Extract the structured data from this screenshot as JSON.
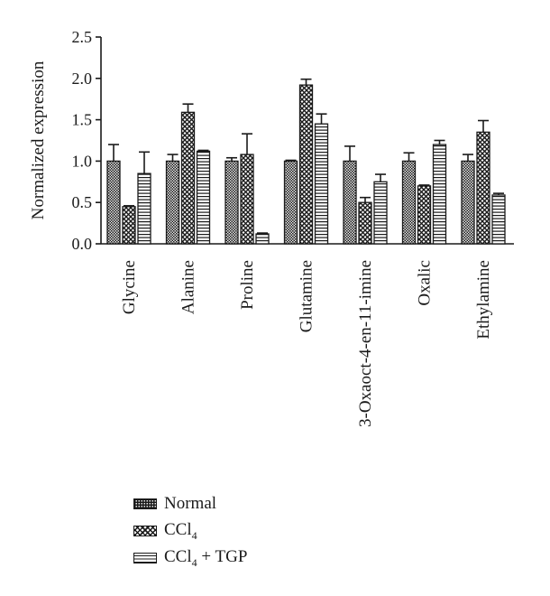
{
  "chart_data": {
    "type": "bar",
    "ylabel": "Normalized expression",
    "ylim": [
      0,
      2.5
    ],
    "yticks": [
      "0.0",
      "0.5",
      "1.0",
      "1.5",
      "2.0",
      "2.5"
    ],
    "categories": [
      "Glycine",
      "Alanine",
      "Proline",
      "Glutamine",
      "3-Oxaoct-4-en-11-imine",
      "Oxalic",
      "Ethylamine"
    ],
    "legend_position": "bottom-left",
    "series": [
      {
        "name": "Normal",
        "pattern": "fine-check",
        "values": [
          1.0,
          1.0,
          1.0,
          1.0,
          1.0,
          1.0,
          1.0
        ],
        "errors": [
          0.2,
          0.08,
          0.04,
          0.01,
          0.18,
          0.1,
          0.08
        ]
      },
      {
        "name": "CCl4",
        "pattern": "diamond-check",
        "values": [
          0.45,
          1.59,
          1.08,
          1.92,
          0.5,
          0.7,
          1.35
        ],
        "errors": [
          0.01,
          0.1,
          0.25,
          0.07,
          0.06,
          0.01,
          0.14
        ]
      },
      {
        "name": "CCl4 + TGP",
        "pattern": "horizontal-stripes",
        "values": [
          0.85,
          1.12,
          0.12,
          1.45,
          0.75,
          1.2,
          0.59
        ],
        "errors": [
          0.26,
          0.01,
          0.01,
          0.12,
          0.09,
          0.05,
          0.02
        ]
      }
    ]
  },
  "legend": {
    "normal": "Normal",
    "ccl4_base": "CCl",
    "ccl4_sub": "4",
    "tgp_suffix": " + TGP"
  }
}
